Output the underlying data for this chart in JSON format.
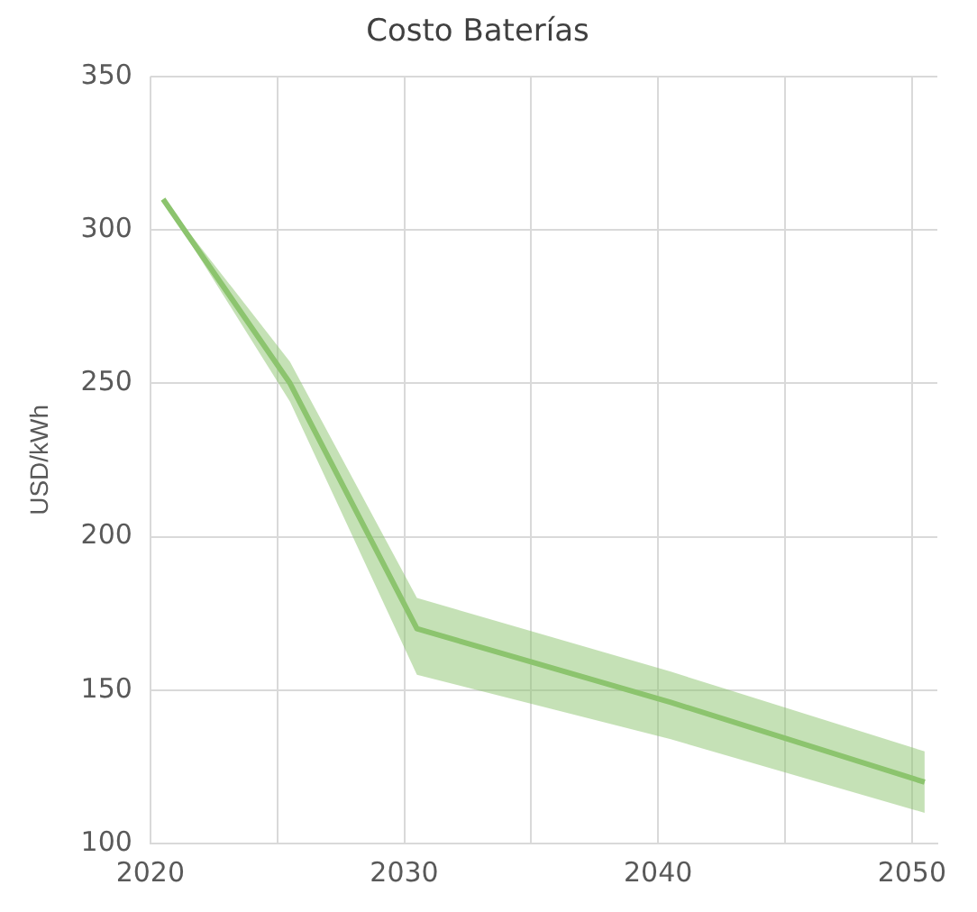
{
  "chart_data": {
    "type": "line",
    "title": "Costo Baterías",
    "ylabel": "USD/kWh",
    "x": [
      2020.5,
      2025.5,
      2030.5,
      2040.5,
      2050.5
    ],
    "series": [
      {
        "color": "#8cc46e",
        "values": [
          310,
          250,
          170,
          146,
          120
        ],
        "lower": [
          310,
          244,
          155,
          134,
          110
        ],
        "upper": [
          310,
          257,
          180,
          156,
          130
        ]
      }
    ],
    "xlim": [
      2020,
      2051
    ],
    "xticks": [
      2020,
      {
        "value": 2025,
        "label": null
      },
      2030,
      {
        "value": 2035,
        "label": null
      },
      2040,
      {
        "value": 2045,
        "label": null
      },
      2050
    ],
    "ylim": [
      100,
      350
    ],
    "yticks": [
      100,
      150,
      200,
      250,
      300,
      350
    ],
    "grid": true,
    "legend": false,
    "marker": "none",
    "line_style": "solid"
  }
}
